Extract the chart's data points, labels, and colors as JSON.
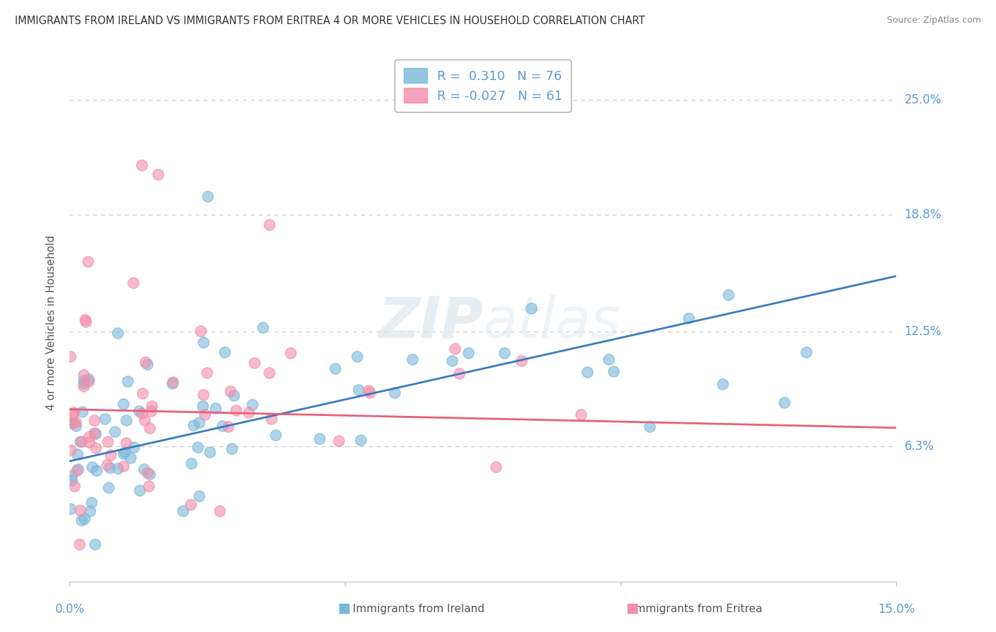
{
  "title": "IMMIGRANTS FROM IRELAND VS IMMIGRANTS FROM ERITREA 4 OR MORE VEHICLES IN HOUSEHOLD CORRELATION CHART",
  "source": "Source: ZipAtlas.com",
  "ylabel": "4 or more Vehicles in Household",
  "xlim": [
    0.0,
    0.15
  ],
  "ylim": [
    -0.01,
    0.27
  ],
  "yticks": [
    0.063,
    0.125,
    0.188,
    0.25
  ],
  "ytick_labels": [
    "6.3%",
    "12.5%",
    "18.8%",
    "25.0%"
  ],
  "xticks": [
    0.0,
    0.05,
    0.1,
    0.15
  ],
  "xtick_show": [
    0.0,
    0.15
  ],
  "xtick_labels": [
    "0.0%",
    "15.0%"
  ],
  "ireland_R": 0.31,
  "ireland_N": 76,
  "eritrea_R": -0.027,
  "eritrea_N": 61,
  "ireland_color": "#7ab8d9",
  "eritrea_color": "#f28daa",
  "ireland_line_color": "#3a7bbf",
  "eritrea_line_color": "#e8607a",
  "background_color": "#ffffff",
  "grid_color": "#c8c8c8",
  "label_color": "#5b9bd5",
  "ireland_line_x0": 0.0,
  "ireland_line_y0": 0.055,
  "ireland_line_x1": 0.15,
  "ireland_line_y1": 0.155,
  "eritrea_line_x0": 0.0,
  "eritrea_line_y0": 0.083,
  "eritrea_line_x1": 0.15,
  "eritrea_line_y1": 0.073
}
